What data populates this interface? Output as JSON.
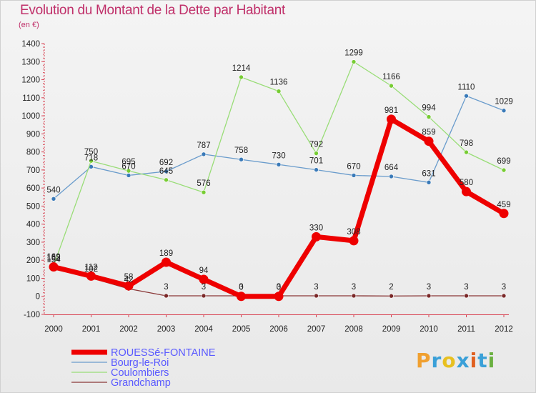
{
  "header": {
    "title": "Evolution du Montant de la Dette par Habitant",
    "unit": "(en €)"
  },
  "logo": {
    "text": "Proxiti",
    "colors": [
      "#f0a030",
      "#3aa0d8",
      "#e8c020",
      "#3aa0d8",
      "#e06020",
      "#3aa0d8",
      "#6ab040"
    ]
  },
  "chart_data": {
    "type": "line",
    "title": "Evolution du Montant de la Dette par Habitant",
    "subtitle": "(en €)",
    "xlabel": "",
    "ylabel": "",
    "x": [
      "2000",
      "2001",
      "2002",
      "2003",
      "2004",
      "2005",
      "2006",
      "2007",
      "2008",
      "2009",
      "2010",
      "2011",
      "2012"
    ],
    "ylim": [
      -100,
      1400
    ],
    "yticks": [
      -100,
      0,
      100,
      200,
      300,
      400,
      500,
      600,
      700,
      800,
      900,
      1000,
      1100,
      1200,
      1300,
      1400
    ],
    "grid": false,
    "legend_position": "bottom",
    "series": [
      {
        "name": "Bourg-le-Roi",
        "color": "#6a9ccc",
        "marker": "#3a7ab8",
        "width": 1.3,
        "values": [
          540,
          718,
          670,
          692,
          787,
          758,
          730,
          701,
          670,
          664,
          631,
          1110,
          1029
        ],
        "labels": [
          "540",
          "718",
          "670",
          "692",
          "787",
          "758",
          "730",
          "701",
          "670",
          "664",
          "631",
          "1110",
          "1029"
        ]
      },
      {
        "name": "Coulombiers",
        "color": "#99dd77",
        "marker": "#77cc33",
        "width": 1.3,
        "values": [
          169,
          750,
          695,
          645,
          576,
          1214,
          1136,
          792,
          1299,
          1166,
          994,
          798,
          699
        ],
        "labels": [
          "169",
          "750",
          "695",
          "645",
          "576",
          "1214",
          "1136",
          "792",
          "1299",
          "1166",
          "994",
          "798",
          "699"
        ]
      },
      {
        "name": "Grandchamp",
        "color": "#8a3838",
        "marker": "#7a2828",
        "width": 1.3,
        "values": [
          154,
          102,
          42,
          3,
          3,
          3,
          3,
          3,
          3,
          2,
          3,
          3,
          3
        ],
        "labels": [
          "154",
          "102",
          "42",
          "3",
          "3",
          "3",
          "3",
          "3",
          "3",
          "2",
          "3",
          "3",
          "3"
        ]
      },
      {
        "name": "ROUESSé-FONTAINE",
        "color": "#ee0000",
        "marker": "#ee0000",
        "width": 7,
        "values": [
          163,
          112,
          58,
          189,
          94,
          0,
          0,
          330,
          308,
          981,
          859,
          580,
          459
        ],
        "labels": [
          "163",
          "112",
          "58",
          "189",
          "94",
          "0",
          "0",
          "330",
          "308",
          "981",
          "859",
          "580",
          "459"
        ]
      }
    ],
    "legend": [
      {
        "name": "ROUESSé-FONTAINE",
        "color": "#ee0000",
        "width": 7
      },
      {
        "name": "Bourg-le-Roi",
        "color": "#6a9ccc",
        "width": 1.3
      },
      {
        "name": "Coulombiers",
        "color": "#99dd77",
        "width": 1.3
      },
      {
        "name": "Grandchamp",
        "color": "#8a3838",
        "width": 1.3
      }
    ]
  }
}
